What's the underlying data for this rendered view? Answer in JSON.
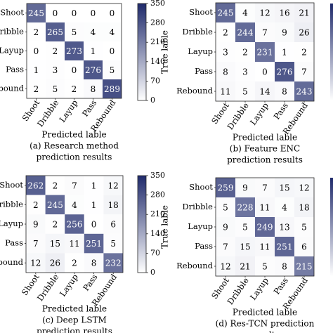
{
  "colorbar": {
    "ticks": [
      0,
      70,
      140,
      210,
      280,
      350
    ],
    "max": 350,
    "color_low": "#ffffff",
    "color_high": "#1f2a6b"
  },
  "chart_data": [
    {
      "type": "heatmap",
      "categories": [
        "Shoot",
        "Dribble",
        "Layup",
        "Pass",
        "Rebound"
      ],
      "values": [
        [
          245,
          0,
          0,
          0,
          0
        ],
        [
          2,
          265,
          5,
          4,
          4
        ],
        [
          0,
          2,
          273,
          1,
          0
        ],
        [
          1,
          3,
          0,
          276,
          5
        ],
        [
          2,
          5,
          2,
          8,
          289
        ]
      ],
      "xlabel": "Predicted lable",
      "ylabel": "",
      "caption_lines": [
        "(a) Research method",
        "prediction results"
      ]
    },
    {
      "type": "heatmap",
      "categories": [
        "Shoot",
        "Dribble",
        "Layup",
        "Pass",
        "Rebound"
      ],
      "values": [
        [
          245,
          4,
          12,
          16,
          21
        ],
        [
          2,
          244,
          7,
          9,
          26
        ],
        [
          3,
          2,
          231,
          1,
          2
        ],
        [
          8,
          3,
          0,
          276,
          7
        ],
        [
          11,
          5,
          14,
          8,
          243
        ]
      ],
      "xlabel": "Predicted lable",
      "ylabel": "True lable",
      "caption_lines": [
        "(b) Feature ENC",
        "prediction results"
      ]
    },
    {
      "type": "heatmap",
      "categories": [
        "Shoot",
        "Dribble",
        "Layup",
        "Pass",
        "Rebound"
      ],
      "values": [
        [
          262,
          2,
          7,
          1,
          12
        ],
        [
          2,
          245,
          4,
          1,
          18
        ],
        [
          9,
          2,
          256,
          0,
          6
        ],
        [
          7,
          15,
          11,
          251,
          5
        ],
        [
          12,
          26,
          2,
          8,
          232
        ]
      ],
      "xlabel": "Predicted lable",
      "ylabel": "",
      "caption_lines": [
        "(c) Deep LSTM",
        "prediction results"
      ]
    },
    {
      "type": "heatmap",
      "categories": [
        "Shoot",
        "Dribble",
        "Layup",
        "Pass",
        "Rebound"
      ],
      "values": [
        [
          259,
          9,
          7,
          15,
          12
        ],
        [
          5,
          228,
          11,
          4,
          18
        ],
        [
          9,
          5,
          249,
          13,
          5
        ],
        [
          7,
          15,
          11,
          251,
          6
        ],
        [
          12,
          21,
          5,
          8,
          215
        ]
      ],
      "xlabel": "Predicted lable",
      "ylabel": "True lable",
      "caption_lines": [
        "(d) Res-TCN prediction",
        "results"
      ]
    }
  ]
}
